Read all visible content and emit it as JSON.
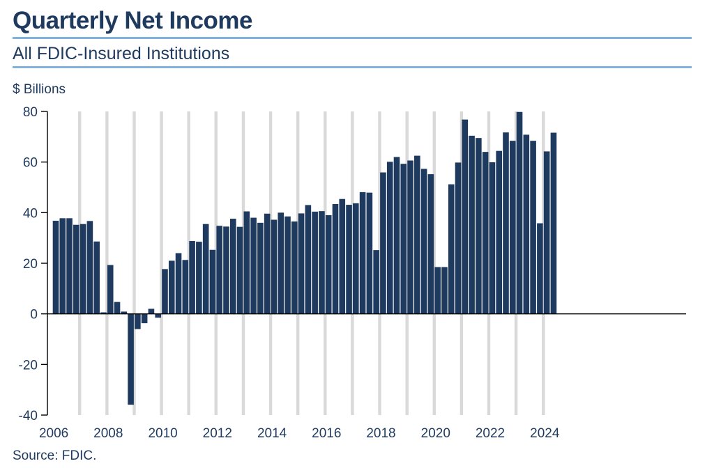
{
  "header": {
    "title": "Quarterly Net Income",
    "subtitle": "All FDIC-Insured Institutions",
    "units": "$ Billions",
    "source": "Source: FDIC."
  },
  "colors": {
    "bar": "#1f3a5f",
    "year_separator": "#d9d9d9",
    "rule": "#7fb2dc",
    "text": "#1f3a5f"
  },
  "chart_data": {
    "type": "bar",
    "title": "Quarterly Net Income",
    "subtitle": "All FDIC-Insured Institutions",
    "ylabel": "$ Billions",
    "ylim": [
      -40,
      80
    ],
    "yticks": [
      80,
      60,
      40,
      20,
      0,
      -20,
      -40
    ],
    "ytick_labels": [
      "80",
      "60",
      "40",
      "20",
      "0",
      "-20",
      "-40"
    ],
    "xtick_labels": [
      "2006",
      "2008",
      "2010",
      "2012",
      "2014",
      "2016",
      "2018",
      "2020",
      "2022",
      "2024"
    ],
    "grid": "vertical separators between years",
    "legend": "none",
    "start_year": 2006,
    "quarters_per_year": 4,
    "series": [
      {
        "values": [
          36.8,
          37.8,
          37.8,
          35.2,
          35.5,
          36.7,
          28.6,
          0.6,
          19.3,
          4.7,
          0.9,
          -35.9,
          -6.0,
          -3.7,
          2.0,
          -1.5,
          17.7,
          21.0,
          24.0,
          21.3,
          28.8,
          28.5,
          35.5,
          25.3,
          34.8,
          34.5,
          37.6,
          34.4,
          40.5,
          38.0,
          36.0,
          39.6,
          37.2,
          40.0,
          38.5,
          36.5,
          39.7,
          43.0,
          40.4,
          40.6,
          39.0,
          43.4,
          45.4,
          43.1,
          43.7,
          48.1,
          47.9,
          25.2,
          55.9,
          60.1,
          62.0,
          59.3,
          60.6,
          62.5,
          57.3,
          55.2,
          18.5,
          18.5,
          51.2,
          59.8,
          76.8,
          70.4,
          69.5,
          64.0,
          59.9,
          64.4,
          71.7,
          68.4,
          79.8,
          70.8,
          68.4,
          35.8,
          64.2,
          71.6
        ]
      }
    ]
  }
}
